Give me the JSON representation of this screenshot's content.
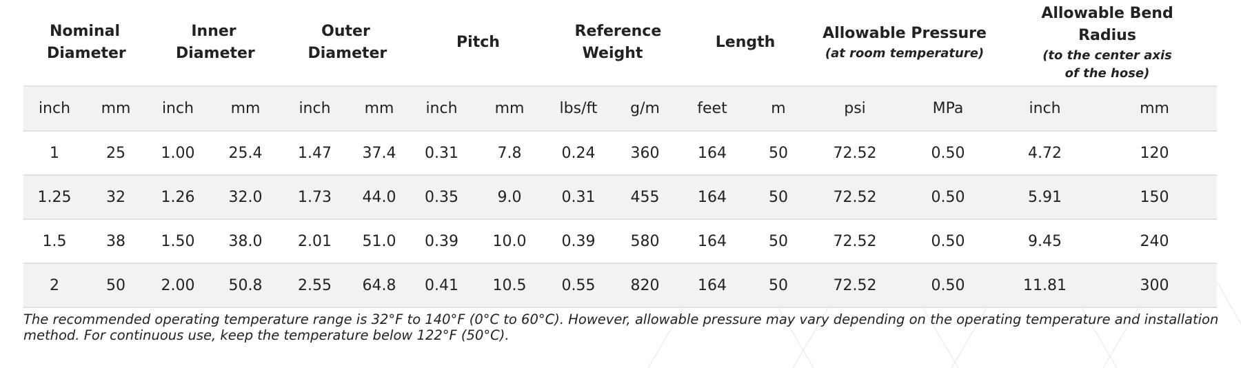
{
  "table": {
    "groups": [
      {
        "title": "Nominal Diameter"
      },
      {
        "title": "Inner Diameter"
      },
      {
        "title": "Outer Diameter"
      },
      {
        "title": "Pitch"
      },
      {
        "title": "Reference Weight"
      },
      {
        "title": "Length"
      },
      {
        "title": "Allowable Pressure",
        "note": "(at room temperature)"
      },
      {
        "title": "Allowable Bend Radius",
        "note": "(to the center axis of the hose)"
      }
    ],
    "units": [
      "inch",
      "mm",
      "inch",
      "mm",
      "inch",
      "mm",
      "inch",
      "mm",
      "lbs/ft",
      "g/m",
      "feet",
      "m",
      "psi",
      "MPa",
      "inch",
      "mm"
    ],
    "rows": [
      [
        "1",
        "25",
        "1.00",
        "25.4",
        "1.47",
        "37.4",
        "0.31",
        "7.8",
        "0.24",
        "360",
        "164",
        "50",
        "72.52",
        "0.50",
        "4.72",
        "120"
      ],
      [
        "1.25",
        "32",
        "1.26",
        "32.0",
        "1.73",
        "44.0",
        "0.35",
        "9.0",
        "0.31",
        "455",
        "164",
        "50",
        "72.52",
        "0.50",
        "5.91",
        "150"
      ],
      [
        "1.5",
        "38",
        "1.50",
        "38.0",
        "2.01",
        "51.0",
        "0.39",
        "10.0",
        "0.39",
        "580",
        "164",
        "50",
        "72.52",
        "0.50",
        "9.45",
        "240"
      ],
      [
        "2",
        "50",
        "2.00",
        "50.8",
        "2.55",
        "64.8",
        "0.41",
        "10.5",
        "0.55",
        "820",
        "164",
        "50",
        "72.52",
        "0.50",
        "11.81",
        "300"
      ]
    ]
  },
  "footnote": "The recommended operating temperature range is 32°F to 140°F (0°C to 60°C). However, allowable pressure may vary depending on the operating temperature and installation method. For continuous use, keep the temperature below 122°F (50°C)."
}
